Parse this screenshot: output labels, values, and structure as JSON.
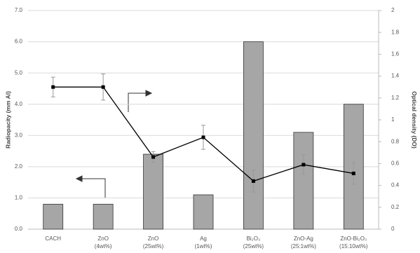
{
  "chart_data": {
    "type": "bar-line",
    "y_label": "Radiopacity (mm Al)",
    "y2_label": "Optical density (DO)",
    "categories": [
      [
        "CACH"
      ],
      [
        "ZnO",
        "(4wt%)"
      ],
      [
        "ZnO",
        "(25wt%)"
      ],
      [
        "Ag",
        "(1wt%)"
      ],
      [
        "Bi₂O₃",
        "(25wt%)"
      ],
      [
        "ZnO-Ag",
        "(25:1wt%)"
      ],
      [
        "ZnO-Bi₂O₃",
        "(15:10wt%)"
      ]
    ],
    "series": [
      {
        "type": "bar",
        "color": "#a6a6a6",
        "values": [
          0.8,
          0.8,
          2.4,
          1.1,
          6.0,
          3.1,
          4.0
        ]
      },
      {
        "type": "line",
        "axis": "y2",
        "color": "#000000",
        "values": [
          1.3,
          1.3,
          0.66,
          0.84,
          0.44,
          0.59,
          0.51
        ],
        "errors": [
          0.09,
          0.12,
          0.05,
          0.11,
          0.1,
          0.09,
          0.1
        ]
      }
    ],
    "ylim": [
      0,
      7
    ],
    "yticks": [
      {
        "value": 0,
        "label": "0.0"
      },
      {
        "value": 1,
        "label": "1.0"
      },
      {
        "value": 2,
        "label": "2.0"
      },
      {
        "value": 3,
        "label": "3.0"
      },
      {
        "value": 4,
        "label": "4.0"
      },
      {
        "value": 5,
        "label": "5.0"
      },
      {
        "value": 6,
        "label": "6.0"
      },
      {
        "value": 7,
        "label": "7.0"
      }
    ],
    "y2lim": [
      0,
      2
    ],
    "y2ticks": [
      0,
      0.2,
      0.4,
      0.6,
      0.8,
      1,
      1.2,
      1.4,
      1.6,
      1.8,
      2
    ],
    "grid": true
  }
}
